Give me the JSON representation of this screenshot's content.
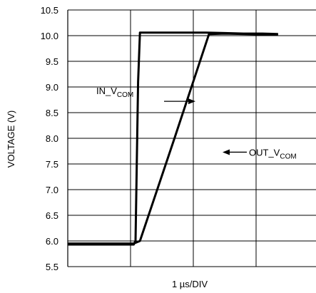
{
  "chart_data": {
    "type": "line",
    "title": "",
    "xlabel": "1 µs/DIV",
    "ylabel": "VOLTAGE (V)",
    "ylim": [
      5.5,
      10.5
    ],
    "ytick_labels": [
      "5.5",
      "6.0",
      "6.5",
      "7.0",
      "7.5",
      "8.0",
      "8.5",
      "9.0",
      "9.5",
      "10.0",
      "10.5"
    ],
    "xlim": [
      0,
      5
    ],
    "x_divisions": 5,
    "grid": true,
    "series": [
      {
        "name": "IN_VCOM",
        "points": [
          [
            0,
            5.93
          ],
          [
            1.05,
            5.93
          ],
          [
            1.08,
            6.0
          ],
          [
            1.12,
            9.1
          ],
          [
            1.15,
            10.06
          ],
          [
            2.2,
            10.06
          ],
          [
            2.5,
            10.05
          ],
          [
            2.8,
            10.04
          ],
          [
            3.1,
            10.04
          ],
          [
            3.35,
            10.03
          ]
        ]
      },
      {
        "name": "OUT_VCOM",
        "points": [
          [
            0,
            5.95
          ],
          [
            1.05,
            5.95
          ],
          [
            1.15,
            6.0
          ],
          [
            1.7,
            8.0
          ],
          [
            2.25,
            10.03
          ],
          [
            2.5,
            10.04
          ],
          [
            3.35,
            10.02
          ]
        ]
      }
    ],
    "annotations": [
      {
        "main": "IN_V",
        "sub": "COM",
        "series": "IN_VCOM"
      },
      {
        "main": "OUT_V",
        "sub": "COM",
        "series": "OUT_VCOM"
      }
    ]
  }
}
